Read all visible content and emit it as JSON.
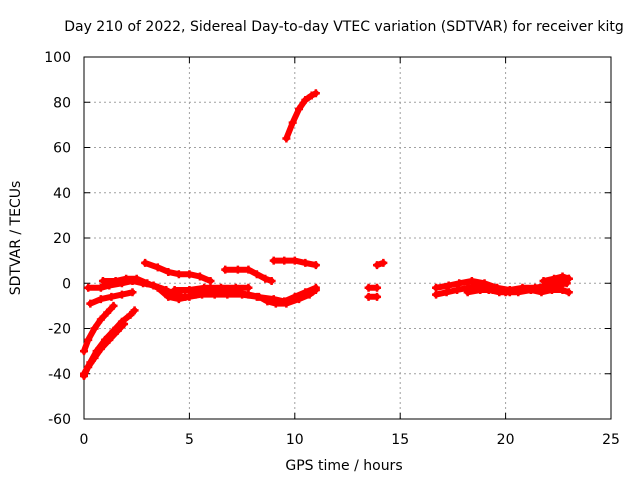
{
  "chart_data": {
    "type": "scatter",
    "title": "Day 210 of 2022, Sidereal Day-to-day VTEC variation (SDTVAR) for receiver kitg",
    "xlabel": "GPS time / hours",
    "ylabel": "SDTVAR / TECUs",
    "xlim": [
      0,
      25
    ],
    "ylim": [
      -60,
      100
    ],
    "xticks": [
      0,
      5,
      10,
      15,
      20,
      25
    ],
    "yticks": [
      -60,
      -40,
      -20,
      0,
      20,
      40,
      60,
      80,
      100
    ],
    "grid": true,
    "color": "#ff0000",
    "segments": [
      {
        "x": [
          0.0,
          0.2,
          0.5,
          0.8,
          1.1,
          1.4
        ],
        "y": [
          -30,
          -25,
          -20,
          -16,
          -13,
          -10
        ]
      },
      {
        "x": [
          0.0,
          0.3,
          0.6,
          1.0,
          1.4,
          1.8,
          2.2,
          2.4
        ],
        "y": [
          -40,
          -35,
          -30,
          -25,
          -21,
          -17,
          -14,
          -12
        ]
      },
      {
        "x": [
          0.0,
          0.2,
          0.5,
          0.8,
          1.2,
          1.6,
          1.9
        ],
        "y": [
          -41,
          -37,
          -33,
          -29,
          -25,
          -21,
          -18
        ]
      },
      {
        "x": [
          0.3,
          0.8,
          1.3,
          1.8,
          2.3
        ],
        "y": [
          -9,
          -7,
          -6,
          -5,
          -4
        ]
      },
      {
        "x": [
          0.2,
          0.8,
          1.2,
          1.8,
          2.3,
          2.8,
          3.3,
          3.9,
          4.3,
          4.8,
          5.3,
          5.8,
          6.5,
          7.2,
          7.8,
          8.3,
          8.7,
          9.1,
          9.6,
          10.2,
          10.7,
          11.0
        ],
        "y": [
          -2,
          -2,
          -1,
          0,
          1,
          0,
          -1,
          -3,
          -5,
          -6,
          -5,
          -4,
          -4,
          -4,
          -5,
          -6,
          -8,
          -9,
          -9,
          -7,
          -5,
          -3
        ]
      },
      {
        "x": [
          0.9,
          1.5,
          2.0,
          2.5,
          3.0,
          3.5,
          4.0,
          4.5,
          5.0,
          5.6,
          6.2,
          6.8,
          7.5,
          8.2,
          9.0,
          9.5,
          10.0,
          10.5,
          11.0
        ],
        "y": [
          1,
          1,
          2,
          2,
          0,
          -2,
          -6,
          -7,
          -6,
          -5,
          -5,
          -5,
          -5,
          -6,
          -7,
          -8,
          -6,
          -4,
          -2
        ]
      },
      {
        "x": [
          2.9,
          3.5,
          4.0,
          4.5,
          5.0,
          5.5,
          6.0
        ],
        "y": [
          9,
          7,
          5,
          4,
          4,
          3,
          1
        ]
      },
      {
        "x": [
          4.3,
          5.0,
          5.7,
          6.5,
          7.2,
          7.8
        ],
        "y": [
          -3,
          -3,
          -2,
          -2,
          -2,
          -2
        ]
      },
      {
        "x": [
          6.7,
          7.3,
          7.8,
          8.2,
          8.6,
          8.9
        ],
        "y": [
          6,
          6,
          6,
          4,
          2,
          1
        ]
      },
      {
        "x": [
          9.0,
          9.5,
          10.0,
          10.5,
          11.0
        ],
        "y": [
          10,
          10,
          10,
          9,
          8
        ]
      },
      {
        "x": [
          9.6,
          9.9,
          10.2,
          10.5,
          10.8,
          11.0
        ],
        "y": [
          64,
          71,
          77,
          81,
          83,
          84
        ]
      },
      {
        "x": [
          13.5,
          13.9
        ],
        "y": [
          -2,
          -2
        ]
      },
      {
        "x": [
          13.5,
          13.9
        ],
        "y": [
          -6,
          -6
        ]
      },
      {
        "x": [
          13.9,
          14.2
        ],
        "y": [
          8,
          9
        ]
      },
      {
        "x": [
          16.7,
          17.2,
          17.7,
          18.2,
          18.7,
          19.2,
          19.7,
          20.2,
          20.7,
          21.2,
          21.7,
          22.2,
          22.7,
          23.0
        ],
        "y": [
          -5,
          -4,
          -3,
          -2,
          -1,
          -3,
          -4,
          -4,
          -3,
          -3,
          -4,
          -3,
          -3,
          -4
        ]
      },
      {
        "x": [
          16.7,
          17.3,
          17.8,
          18.4,
          19.0,
          19.6,
          20.2,
          20.8,
          21.4,
          22.0,
          22.6,
          23.0
        ],
        "y": [
          -2,
          -1,
          0,
          1,
          0,
          -2,
          -3,
          -2,
          -2,
          -1,
          1,
          2
        ]
      },
      {
        "x": [
          18.2,
          18.8,
          19.4,
          20.0,
          20.6,
          21.2,
          21.8,
          22.4,
          22.9
        ],
        "y": [
          -4,
          -3,
          -3,
          -4,
          -4,
          -3,
          -2,
          -1,
          0
        ]
      },
      {
        "x": [
          21.8,
          22.3,
          22.7,
          23.0
        ],
        "y": [
          1,
          2,
          3,
          2
        ]
      }
    ]
  }
}
